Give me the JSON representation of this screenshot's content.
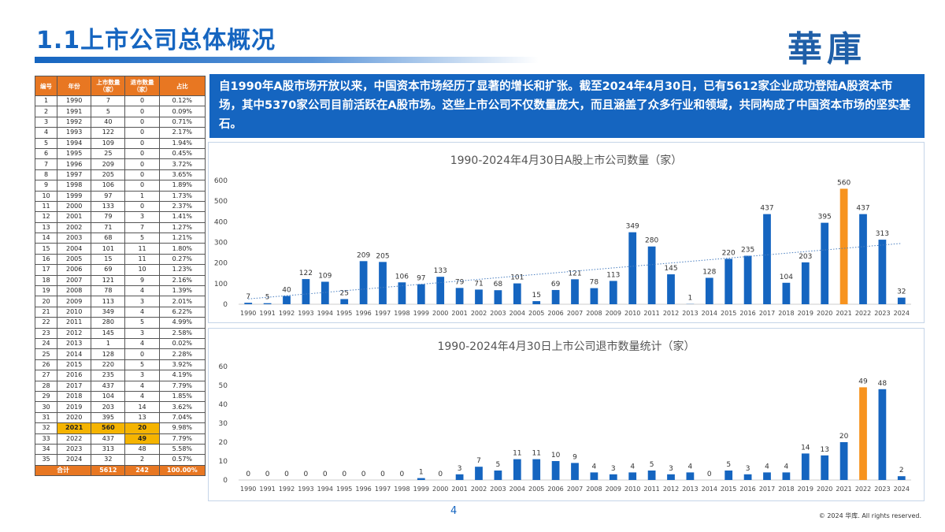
{
  "header": {
    "title": "1.1上市公司总体概况",
    "logo": "華庫"
  },
  "intro_text": "自1990年A股市场开放以来，中国资本市场经历了显著的增长和扩张。截至2024年4月30日，已有5612家企业成功登陆A股资本市场，其中5370家公司目前活跃在A股市场。这些上市公司不仅数量庞大，而且涵盖了众多行业和领域，共同构成了中国资本市场的坚实基石。",
  "table": {
    "headers": [
      "编号",
      "年份",
      "上市数量（家）",
      "退市数量（家）",
      "占比"
    ],
    "rows": [
      [
        "1",
        "1990",
        "7",
        "0",
        "0.12%"
      ],
      [
        "2",
        "1991",
        "5",
        "0",
        "0.09%"
      ],
      [
        "3",
        "1992",
        "40",
        "0",
        "0.71%"
      ],
      [
        "4",
        "1993",
        "122",
        "0",
        "2.17%"
      ],
      [
        "5",
        "1994",
        "109",
        "0",
        "1.94%"
      ],
      [
        "6",
        "1995",
        "25",
        "0",
        "0.45%"
      ],
      [
        "7",
        "1996",
        "209",
        "0",
        "3.72%"
      ],
      [
        "8",
        "1997",
        "205",
        "0",
        "3.65%"
      ],
      [
        "9",
        "1998",
        "106",
        "0",
        "1.89%"
      ],
      [
        "10",
        "1999",
        "97",
        "1",
        "1.73%"
      ],
      [
        "11",
        "2000",
        "133",
        "0",
        "2.37%"
      ],
      [
        "12",
        "2001",
        "79",
        "3",
        "1.41%"
      ],
      [
        "13",
        "2002",
        "71",
        "7",
        "1.27%"
      ],
      [
        "14",
        "2003",
        "68",
        "5",
        "1.21%"
      ],
      [
        "15",
        "2004",
        "101",
        "11",
        "1.80%"
      ],
      [
        "16",
        "2005",
        "15",
        "11",
        "0.27%"
      ],
      [
        "17",
        "2006",
        "69",
        "10",
        "1.23%"
      ],
      [
        "18",
        "2007",
        "121",
        "9",
        "2.16%"
      ],
      [
        "19",
        "2008",
        "78",
        "4",
        "1.39%"
      ],
      [
        "20",
        "2009",
        "113",
        "3",
        "2.01%"
      ],
      [
        "21",
        "2010",
        "349",
        "4",
        "6.22%"
      ],
      [
        "22",
        "2011",
        "280",
        "5",
        "4.99%"
      ],
      [
        "23",
        "2012",
        "145",
        "3",
        "2.58%"
      ],
      [
        "24",
        "2013",
        "1",
        "4",
        "0.02%"
      ],
      [
        "25",
        "2014",
        "128",
        "0",
        "2.28%"
      ],
      [
        "26",
        "2015",
        "220",
        "5",
        "3.92%"
      ],
      [
        "27",
        "2016",
        "235",
        "3",
        "4.19%"
      ],
      [
        "28",
        "2017",
        "437",
        "4",
        "7.79%"
      ],
      [
        "29",
        "2018",
        "104",
        "4",
        "1.85%"
      ],
      [
        "30",
        "2019",
        "203",
        "14",
        "3.62%"
      ],
      [
        "31",
        "2020",
        "395",
        "13",
        "7.04%"
      ],
      [
        "32",
        "2021",
        "560",
        "20",
        "9.98%"
      ],
      [
        "33",
        "2022",
        "437",
        "49",
        "7.79%"
      ],
      [
        "34",
        "2023",
        "313",
        "48",
        "5.58%"
      ],
      [
        "35",
        "2024",
        "32",
        "2",
        "0.57%"
      ]
    ],
    "total": [
      "合计",
      "",
      "5612",
      "242",
      "100.00%"
    ],
    "highlight_color": "#f5b400",
    "header_color": "#e87722"
  },
  "chart_data": [
    {
      "type": "bar",
      "title": "1990-2024年4月30日A股上市公司数量（家）",
      "categories": [
        "1990",
        "1991",
        "1992",
        "1993",
        "1994",
        "1995",
        "1996",
        "1997",
        "1998",
        "1999",
        "2000",
        "2001",
        "2002",
        "2003",
        "2004",
        "2005",
        "2006",
        "2007",
        "2008",
        "2009",
        "2010",
        "2011",
        "2012",
        "2013",
        "2014",
        "2015",
        "2016",
        "2017",
        "2018",
        "2019",
        "2020",
        "2021",
        "2022",
        "2023",
        "2024"
      ],
      "values": [
        7,
        5,
        40,
        122,
        109,
        25,
        209,
        205,
        106,
        97,
        133,
        79,
        71,
        68,
        101,
        15,
        69,
        121,
        78,
        113,
        349,
        280,
        145,
        1,
        128,
        220,
        235,
        437,
        104,
        203,
        395,
        560,
        437,
        313,
        32
      ],
      "highlight_index": 31,
      "bar_color": "#1565c0",
      "highlight_color": "#f7931e",
      "ylim": [
        0,
        600
      ],
      "yticks": [
        0,
        100,
        200,
        300,
        400,
        500,
        600
      ],
      "trendline": true,
      "grid": false
    },
    {
      "type": "bar",
      "title": "1990-2024年4月30日上市公司退市数量统计（家）",
      "categories": [
        "1990",
        "1991",
        "1992",
        "1993",
        "1994",
        "1995",
        "1996",
        "1997",
        "1998",
        "1999",
        "2000",
        "2001",
        "2002",
        "2003",
        "2004",
        "2005",
        "2006",
        "2007",
        "2008",
        "2009",
        "2010",
        "2011",
        "2012",
        "2013",
        "2014",
        "2015",
        "2016",
        "2017",
        "2018",
        "2019",
        "2020",
        "2021",
        "2022",
        "2023",
        "2024"
      ],
      "values": [
        0,
        0,
        0,
        0,
        0,
        0,
        0,
        0,
        0,
        1,
        0,
        3,
        7,
        5,
        11,
        11,
        10,
        9,
        4,
        3,
        4,
        5,
        3,
        4,
        0,
        5,
        3,
        4,
        4,
        14,
        13,
        20,
        49,
        48,
        2
      ],
      "highlight_index": 32,
      "bar_color": "#1565c0",
      "highlight_color": "#f7931e",
      "ylim": [
        0,
        60
      ],
      "yticks": [
        0,
        10,
        20,
        30,
        40,
        50,
        60
      ],
      "grid": false
    }
  ],
  "footer": {
    "page_number": "4",
    "copyright": "© 2024 华库. All rights reserved."
  }
}
